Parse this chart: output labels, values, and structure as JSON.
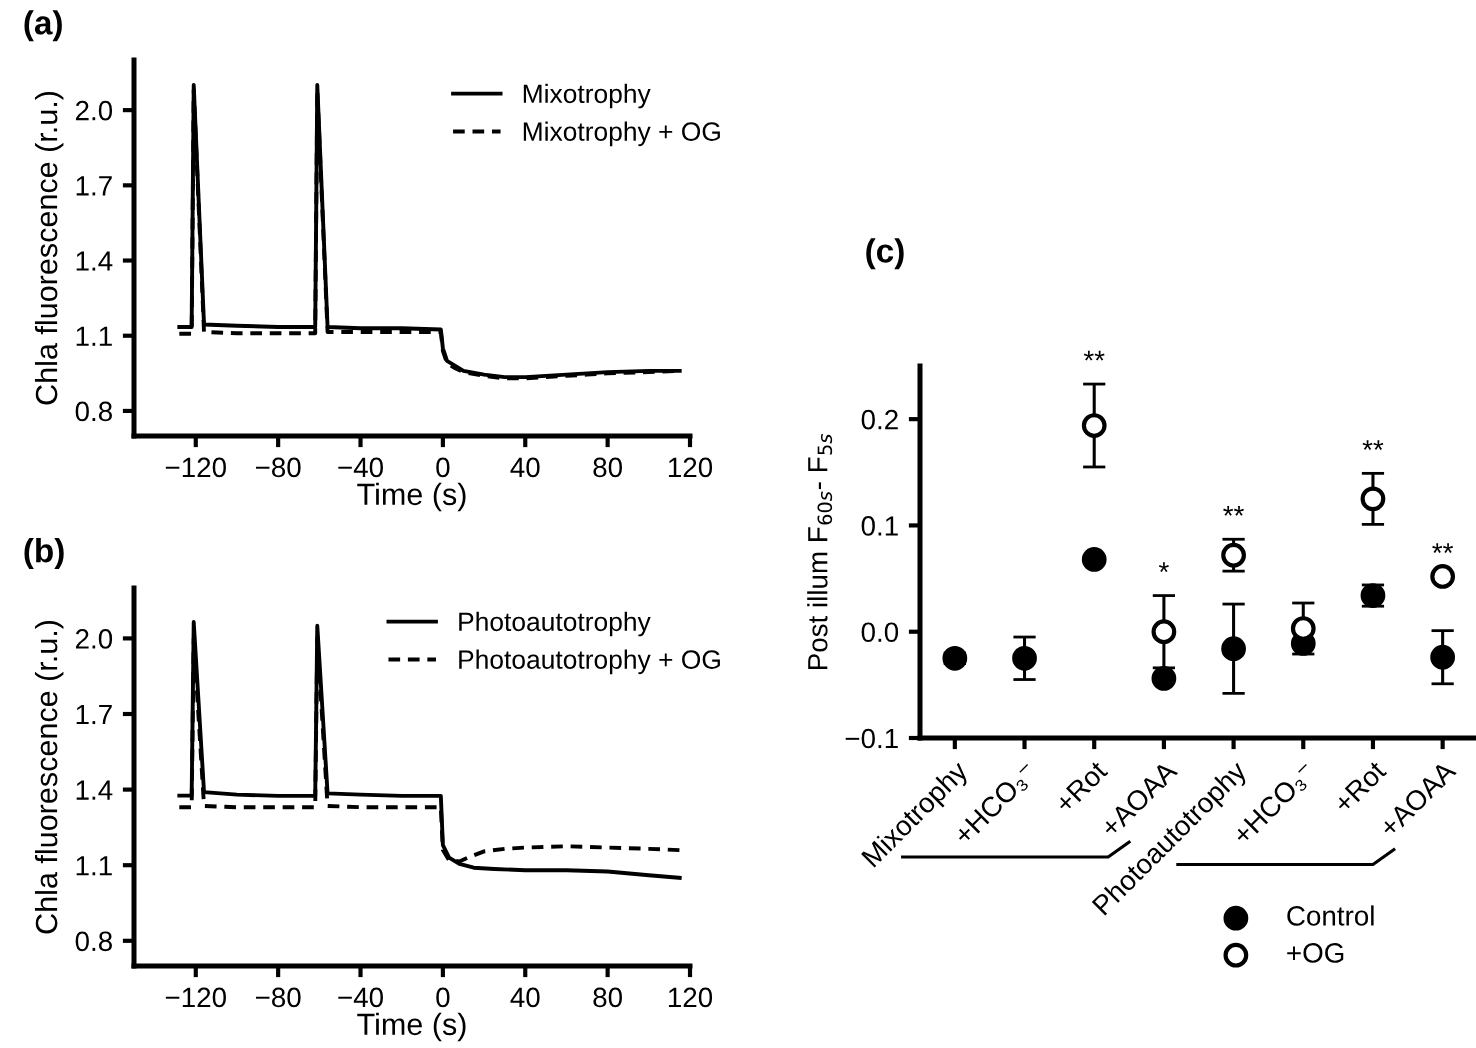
{
  "chart_data": [
    {
      "type": "line",
      "title": "(a)",
      "xlabel": "Time (s)",
      "ylabel": "Chla fluorescence (r.u.)",
      "xlim": [
        -150,
        120
      ],
      "ylim": [
        0.7,
        2.2
      ],
      "xticks": [
        {
          "value": -120,
          "label": "−120"
        },
        {
          "value": -80,
          "label": "−80"
        },
        {
          "value": -40,
          "label": "−40"
        },
        0,
        40,
        80,
        120
      ],
      "yticks": [
        0.8,
        1.1,
        1.4,
        1.7,
        {
          "value": 2.0,
          "label": "2.0"
        }
      ],
      "grid": false,
      "legend": "top right",
      "marker": "none",
      "series": [
        {
          "name": "Mixotrophy",
          "color": "#000000",
          "line_style": "solid",
          "x": [
            -128,
            -122,
            -121,
            -116,
            -100,
            -80,
            -62,
            -61,
            -56,
            -40,
            -20,
            -1,
            0,
            2,
            6,
            10,
            20,
            30,
            40,
            50,
            60,
            70,
            80,
            100,
            115
          ],
          "values": [
            1.135,
            1.135,
            2.1,
            1.145,
            1.14,
            1.135,
            1.135,
            2.1,
            1.135,
            1.13,
            1.13,
            1.125,
            1.05,
            1.0,
            0.98,
            0.96,
            0.945,
            0.935,
            0.935,
            0.94,
            0.945,
            0.95,
            0.955,
            0.96,
            0.96
          ]
        },
        {
          "name": "Mixotrophy + OG",
          "color": "#000000",
          "line_style": "dashed",
          "x": [
            -128,
            -122,
            -121,
            -116,
            -100,
            -80,
            -62,
            -61,
            -56,
            -40,
            -20,
            -1,
            0,
            2,
            6,
            10,
            20,
            30,
            40,
            50,
            60,
            70,
            80,
            100,
            115
          ],
          "values": [
            1.108,
            1.108,
            2.08,
            1.115,
            1.11,
            1.11,
            1.11,
            2.08,
            1.115,
            1.115,
            1.115,
            1.115,
            1.04,
            0.99,
            0.97,
            0.955,
            0.94,
            0.93,
            0.93,
            0.935,
            0.94,
            0.945,
            0.95,
            0.955,
            0.96
          ]
        }
      ]
    },
    {
      "type": "line",
      "title": "(b)",
      "xlabel": "Time (s)",
      "ylabel": "Chla fluorescence (r.u.)",
      "xlim": [
        -150,
        120
      ],
      "ylim": [
        0.7,
        2.2
      ],
      "xticks": [
        {
          "value": -120,
          "label": "−120"
        },
        {
          "value": -80,
          "label": "−80"
        },
        {
          "value": -40,
          "label": "−40"
        },
        0,
        40,
        80,
        120
      ],
      "yticks": [
        0.8,
        1.1,
        1.4,
        1.7,
        {
          "value": 2.0,
          "label": "2.0"
        }
      ],
      "grid": false,
      "legend": "top right",
      "marker": "none",
      "series": [
        {
          "name": "Photoautotrophy",
          "color": "#000000",
          "line_style": "solid",
          "x": [
            -128,
            -122,
            -121,
            -116,
            -100,
            -80,
            -62,
            -61,
            -56,
            -40,
            -20,
            -1,
            0,
            3,
            8,
            15,
            25,
            40,
            60,
            80,
            100,
            115
          ],
          "values": [
            1.376,
            1.376,
            2.065,
            1.39,
            1.38,
            1.375,
            1.375,
            2.05,
            1.385,
            1.38,
            1.375,
            1.375,
            1.18,
            1.13,
            1.105,
            1.09,
            1.085,
            1.08,
            1.08,
            1.075,
            1.06,
            1.05
          ]
        },
        {
          "name": "Photoautotrophy + OG",
          "color": "#000000",
          "line_style": "dashed",
          "x": [
            -128,
            -122,
            -121,
            -116,
            -100,
            -80,
            -62,
            -61,
            -56,
            -40,
            -20,
            -1,
            0,
            3,
            8,
            12,
            20,
            30,
            40,
            60,
            80,
            100,
            115
          ],
          "values": [
            1.33,
            1.33,
            2.0,
            1.335,
            1.33,
            1.33,
            1.33,
            2.0,
            1.335,
            1.33,
            1.33,
            1.33,
            1.16,
            1.12,
            1.115,
            1.13,
            1.155,
            1.165,
            1.17,
            1.175,
            1.17,
            1.165,
            1.16
          ]
        }
      ]
    },
    {
      "type": "scatter",
      "title": "(c)",
      "ylabel": "Post illum F$_{60s}$- F$_{5s}$",
      "ylim": [
        -0.1,
        0.25
      ],
      "yticks": [
        {
          "value": -0.1,
          "label": "−0.1"
        },
        {
          "value": 0.0,
          "label": "0.0"
        },
        0.1,
        0.2
      ],
      "grid": false,
      "legend": "bottom",
      "marker": "circle",
      "categories": [
        "Mixotrophy",
        "+HCO₃⁻",
        "+Rot",
        "+AOAA",
        "Photoautotrophy",
        "+HCO₃⁻",
        "+Rot",
        "+AOAA"
      ],
      "series": [
        {
          "name": "Control",
          "color": "#000000",
          "values": [
            -0.025,
            -0.025,
            0.068,
            -0.044,
            -0.016,
            -0.011,
            0.034,
            -0.024
          ],
          "errors": [
            0.005,
            0.02,
            null,
            null,
            0.042,
            null,
            0.01,
            0.025
          ]
        },
        {
          "name": "+OG",
          "color": "#ffffff",
          "values": [
            null,
            null,
            0.194,
            0.0,
            0.072,
            0.003,
            0.125,
            0.052
          ],
          "errors": [
            null,
            null,
            0.039,
            0.034,
            0.015,
            0.024,
            0.024,
            null
          ]
        }
      ],
      "annotations": [
        "**",
        "*",
        "**",
        "**",
        "**"
      ]
    }
  ]
}
